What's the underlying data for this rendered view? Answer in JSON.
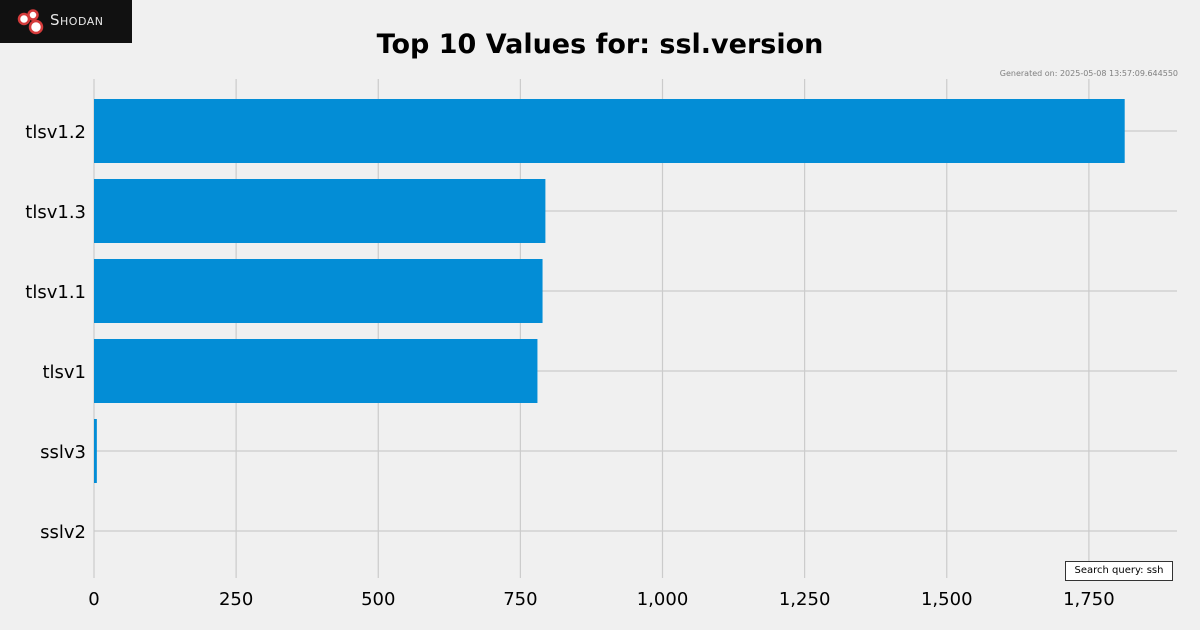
{
  "logo": {
    "text": "Shodan",
    "icon": "shodan-logo-icon"
  },
  "generated_text": "Generated on: 2025-05-08 13:57:09.644550",
  "search_query_text": "Search query: ssh",
  "colors": {
    "bar": "#038dd6",
    "background": "#f0f0f0",
    "grid": "#cbcbcb"
  },
  "chart_data": {
    "type": "bar",
    "orientation": "horizontal",
    "title": "Top 10 Values for: ssl.version",
    "categories": [
      "tlsv1.2",
      "tlsv1.3",
      "tlsv1.1",
      "tlsv1",
      "sslv3",
      "sslv2"
    ],
    "values": [
      1813,
      794,
      789,
      780,
      5,
      0
    ],
    "xlim": [
      0,
      1905
    ],
    "xticks": [
      0,
      250,
      500,
      750,
      1000,
      1250,
      1500,
      1750
    ],
    "xtick_labels": [
      "0",
      "250",
      "500",
      "750",
      "1,000",
      "1,250",
      "1,500",
      "1,750"
    ],
    "grid": true,
    "xlabel": "",
    "ylabel": ""
  }
}
